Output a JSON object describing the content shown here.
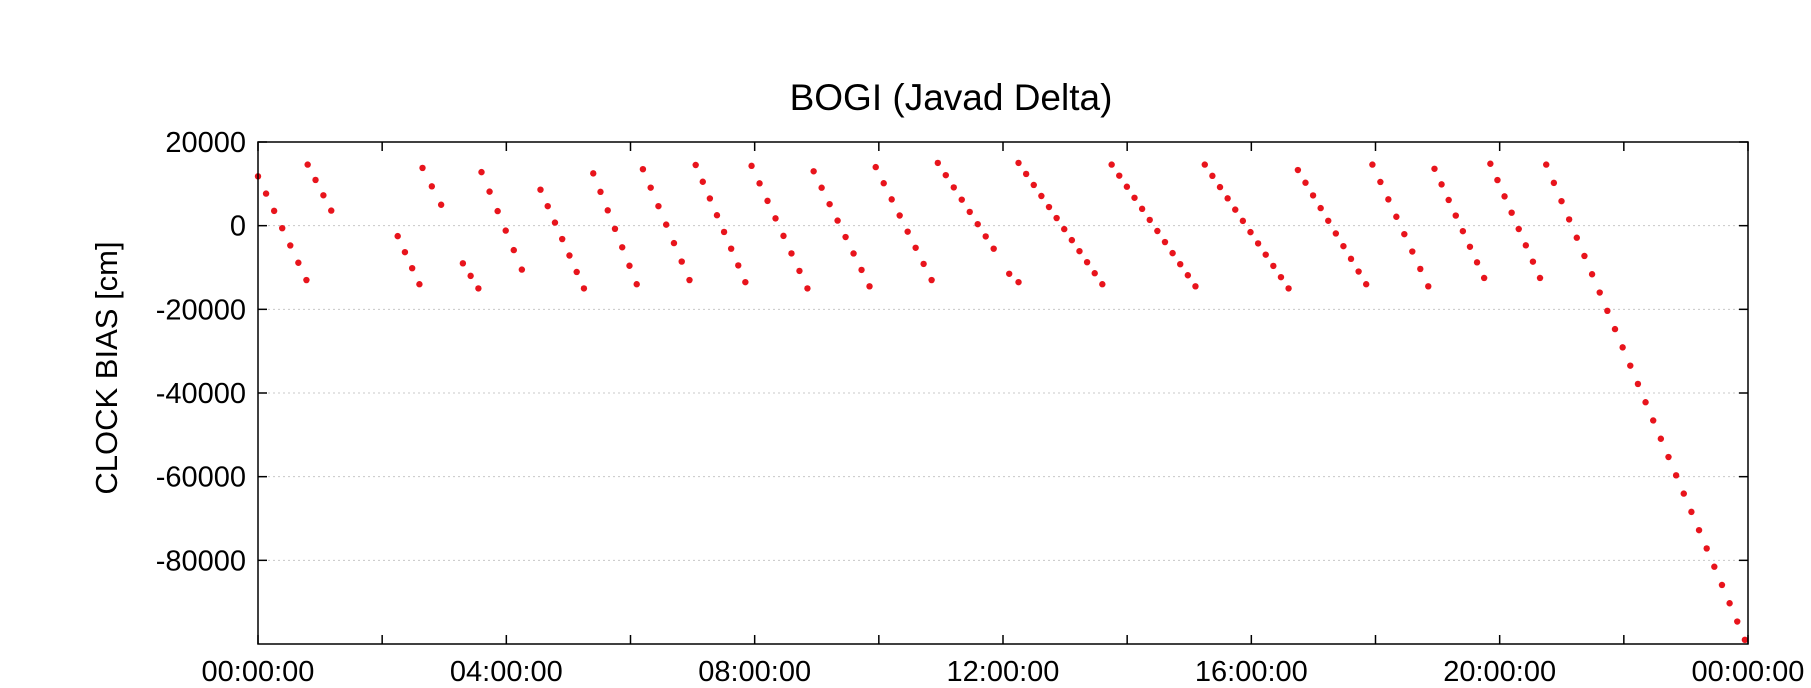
{
  "chart_data": {
    "type": "scatter",
    "title": "BOGI (Javad Delta)",
    "xlabel": "",
    "ylabel": "CLOCK BIAS [cm]",
    "x_unit": "hours",
    "xlim": [
      0,
      24
    ],
    "ylim": [
      -100000,
      20000
    ],
    "y_ticks": [
      20000,
      0,
      -20000,
      -40000,
      -60000,
      -80000
    ],
    "y_tick_labels": [
      "20000",
      "0",
      "-20000",
      "-40000",
      "-60000",
      "-80000"
    ],
    "x_ticks": [
      0,
      4,
      8,
      12,
      16,
      20,
      24
    ],
    "x_tick_labels": [
      "00:00:00",
      "04:00:00",
      "08:00:00",
      "12:00:00",
      "16:00:00",
      "20:00:00",
      "00:00:00"
    ],
    "x_minor_ticks": [
      2,
      6,
      10,
      14,
      18,
      22
    ],
    "grid": true,
    "marker_color": "#e8141c",
    "series": [
      {
        "segments": [
          {
            "x_start": 0.0,
            "x_end": 0.78,
            "y_start": 11800,
            "y_end": -13000
          },
          {
            "x_start": 0.8,
            "x_end": 1.18,
            "y_start": 14600,
            "y_end": 3600
          },
          {
            "x_start": 2.25,
            "x_end": 2.6,
            "y_start": -2500,
            "y_end": -14000
          },
          {
            "x_start": 2.65,
            "x_end": 2.95,
            "y_start": 13800,
            "y_end": 5000
          },
          {
            "x_start": 3.3,
            "x_end": 3.55,
            "y_start": -9000,
            "y_end": -15000
          },
          {
            "x_start": 3.6,
            "x_end": 4.25,
            "y_start": 12800,
            "y_end": -10500
          },
          {
            "x_start": 4.55,
            "x_end": 5.25,
            "y_start": 8600,
            "y_end": -15000
          },
          {
            "x_start": 5.4,
            "x_end": 6.1,
            "y_start": 12500,
            "y_end": -14000
          },
          {
            "x_start": 6.2,
            "x_end": 6.95,
            "y_start": 13500,
            "y_end": -13000
          },
          {
            "x_start": 7.05,
            "x_end": 7.85,
            "y_start": 14500,
            "y_end": -13500
          },
          {
            "x_start": 7.95,
            "x_end": 8.85,
            "y_start": 14300,
            "y_end": -15000
          },
          {
            "x_start": 8.95,
            "x_end": 9.85,
            "y_start": 13000,
            "y_end": -14500
          },
          {
            "x_start": 9.95,
            "x_end": 10.85,
            "y_start": 14000,
            "y_end": -13000
          },
          {
            "x_start": 10.95,
            "x_end": 11.85,
            "y_start": 15000,
            "y_end": -5500
          },
          {
            "x_start": 12.1,
            "x_end": 12.25,
            "y_start": -11500,
            "y_end": -13500
          },
          {
            "x_start": 12.25,
            "x_end": 13.6,
            "y_start": 15000,
            "y_end": -14000
          },
          {
            "x_start": 13.75,
            "x_end": 15.1,
            "y_start": 14600,
            "y_end": -14500
          },
          {
            "x_start": 15.25,
            "x_end": 16.6,
            "y_start": 14600,
            "y_end": -15000
          },
          {
            "x_start": 16.75,
            "x_end": 17.85,
            "y_start": 13300,
            "y_end": -14000
          },
          {
            "x_start": 17.95,
            "x_end": 18.85,
            "y_start": 14600,
            "y_end": -14500
          },
          {
            "x_start": 18.95,
            "x_end": 19.75,
            "y_start": 13600,
            "y_end": -12500
          },
          {
            "x_start": 19.85,
            "x_end": 20.65,
            "y_start": 14800,
            "y_end": -12500
          },
          {
            "x_start": 20.75,
            "x_end": 23.95,
            "y_start": 14600,
            "y_end": -99000
          }
        ]
      }
    ]
  }
}
